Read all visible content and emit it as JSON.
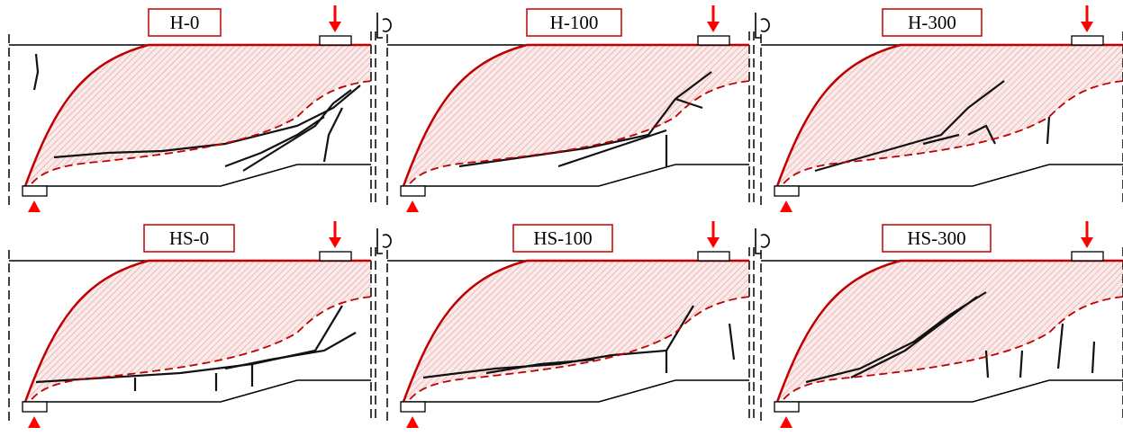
{
  "panels": [
    {
      "label": "H-0"
    },
    {
      "label": "H-100"
    },
    {
      "label": "H-300"
    },
    {
      "label": "HS-0"
    },
    {
      "label": "HS-100"
    },
    {
      "label": "HS-300"
    }
  ]
}
